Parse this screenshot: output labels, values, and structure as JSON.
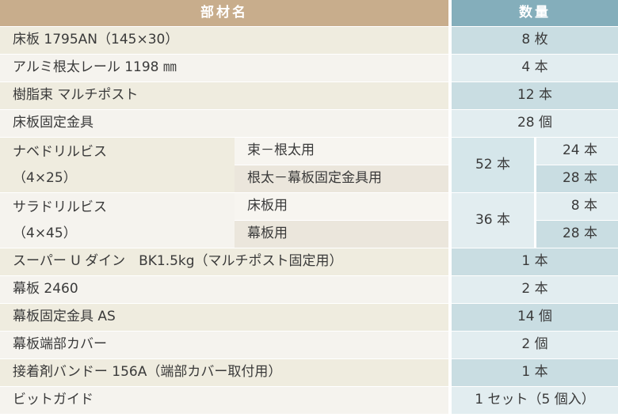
{
  "header": {
    "name": "部材名",
    "qty": "数量"
  },
  "rows": [
    {
      "name": "床板 1795AN（145×30）",
      "qty": "8 枚"
    },
    {
      "name": "アルミ根太レール 1198 ㎜",
      "qty": "4 本"
    },
    {
      "name": "樹脂束 マルチポスト",
      "qty": "12 本"
    },
    {
      "name": "床板固定金具",
      "qty": "28 個"
    },
    {
      "name": "幕板 2460",
      "qty": "2 本"
    },
    {
      "name": "幕板固定金具 AS",
      "qty": "14 個"
    },
    {
      "name": "幕板端部カバー",
      "qty": "2 個"
    },
    {
      "name": "接着剤バンドー 156A（端部カバー取付用）",
      "qty": "1 本"
    },
    {
      "name": "ビットガイド",
      "qty": "1 セット（5 個入）"
    }
  ],
  "screws": [
    {
      "name1": "ナベドリルビス",
      "name2": "（4×25）",
      "total": "52 本",
      "subs": [
        {
          "use": "束－根太用",
          "qty": "24 本"
        },
        {
          "use": "根太－幕板固定金具用",
          "qty": "28 本"
        }
      ]
    },
    {
      "name1": "サラドリルビス",
      "name2": "（4×45）",
      "total": "36 本",
      "subs": [
        {
          "use": "床板用",
          "qty": "8 本"
        },
        {
          "use": "幕板用",
          "qty": "28 本"
        }
      ]
    }
  ],
  "glue_row": {
    "name": "スーパー U ダイン　BK1.5kg（マルチポスト固定用）",
    "qty": "1 本"
  }
}
